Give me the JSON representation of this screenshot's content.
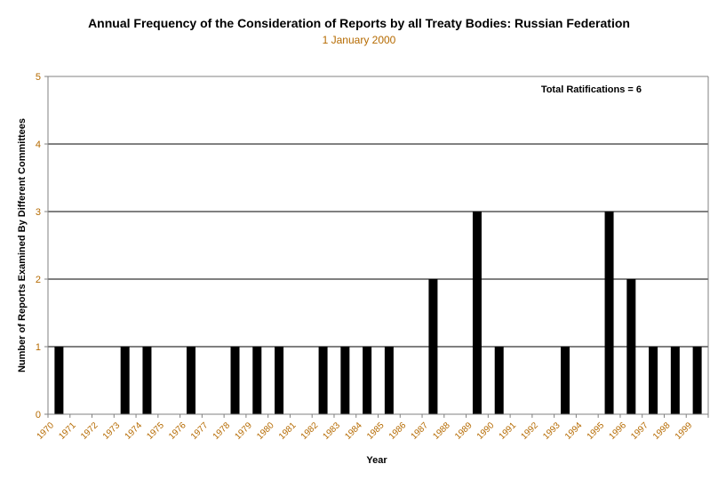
{
  "chart_data": {
    "type": "bar",
    "title": "Annual Frequency of the Consideration of Reports by all Treaty Bodies: Russian Federation",
    "subtitle": "1 January 2000",
    "xlabel": "Year",
    "ylabel": "Number of Reports Examined By Different Committees",
    "annotation": "Total Ratifications = 6",
    "ylim": [
      0,
      5
    ],
    "yticks": [
      0,
      1,
      2,
      3,
      4,
      5
    ],
    "grid": true,
    "categories": [
      "1970",
      "1971",
      "1972",
      "1973",
      "1974",
      "1975",
      "1976",
      "1977",
      "1978",
      "1979",
      "1980",
      "1981",
      "1982",
      "1983",
      "1984",
      "1985",
      "1986",
      "1987",
      "1988",
      "1989",
      "1990",
      "1991",
      "1992",
      "1993",
      "1994",
      "1995",
      "1996",
      "1997",
      "1998",
      "1999"
    ],
    "values": [
      1,
      0,
      0,
      1,
      1,
      0,
      1,
      0,
      1,
      1,
      1,
      0,
      1,
      1,
      1,
      1,
      0,
      2,
      0,
      3,
      1,
      0,
      0,
      1,
      0,
      3,
      2,
      1,
      1,
      1
    ],
    "colors": {
      "bar": "#000000",
      "grid": "#000000",
      "ticks": "#b56a00",
      "axis": "#808080"
    }
  }
}
